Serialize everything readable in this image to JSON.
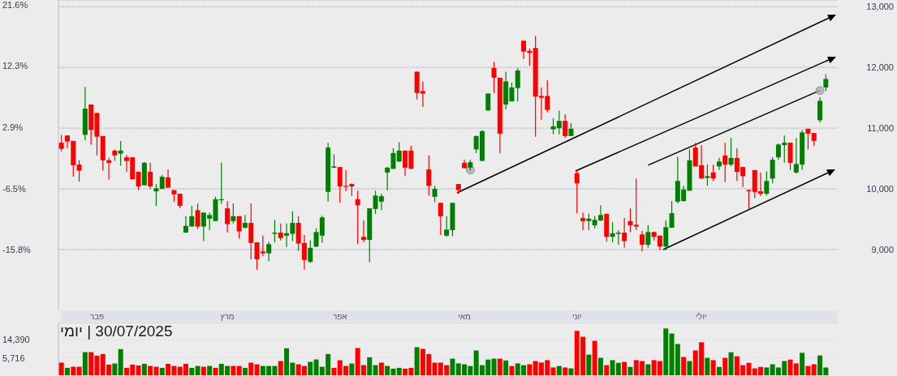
{
  "chart_data": [
    {
      "type": "candlestick",
      "categories": [
        null,
        null,
        null,
        null,
        null,
        null,
        "פבר",
        null,
        null,
        null,
        null,
        null,
        null,
        null,
        null,
        null,
        null,
        null,
        null,
        null,
        null,
        null,
        null,
        null,
        null,
        null,
        null,
        null,
        "מרץ",
        null,
        null,
        null,
        null,
        null,
        null,
        null,
        null,
        null,
        null,
        null,
        null,
        null,
        null,
        null,
        null,
        null,
        null,
        "אפר",
        null,
        null,
        null,
        null,
        null,
        null,
        null,
        null,
        null,
        null,
        null,
        null,
        null,
        null,
        null,
        null,
        null,
        null,
        null,
        null,
        "מאי",
        null,
        null,
        null,
        null,
        null,
        null,
        null,
        null,
        null,
        null,
        null,
        null,
        null,
        null,
        null,
        null,
        null,
        null,
        "יוני",
        null,
        null,
        null,
        null,
        null,
        null,
        null,
        null,
        null,
        null,
        null,
        null,
        null,
        null,
        null,
        null,
        null,
        null,
        null,
        null,
        "יולי",
        null,
        null,
        null,
        null,
        null,
        null,
        null,
        null,
        null,
        null,
        null,
        null,
        null,
        null,
        null,
        null,
        null,
        null,
        null,
        null,
        null
      ],
      "ohlc": [
        [
          10760,
          10890,
          10620,
          10660
        ],
        [
          10880,
          10880,
          10670,
          10780
        ],
        [
          10790,
          10790,
          10200,
          10390
        ],
        [
          10400,
          10470,
          10120,
          10300
        ],
        [
          10890,
          11680,
          10800,
          11320
        ],
        [
          11390,
          11390,
          10730,
          10970
        ],
        [
          11250,
          11250,
          10550,
          10860
        ],
        [
          10870,
          10870,
          10300,
          10470
        ],
        [
          10470,
          10510,
          10150,
          10430
        ],
        [
          10630,
          10650,
          10460,
          10550
        ],
        [
          10580,
          10790,
          10380,
          10630
        ],
        [
          10520,
          10560,
          10280,
          10460
        ],
        [
          10520,
          10520,
          10150,
          10160
        ],
        [
          10280,
          10290,
          9980,
          10040
        ],
        [
          10060,
          10440,
          10060,
          10430
        ],
        [
          10280,
          10430,
          10000,
          10040
        ],
        [
          9960,
          10080,
          9720,
          10010
        ],
        [
          10000,
          10230,
          10000,
          10200
        ],
        [
          10190,
          10320,
          10020,
          10020
        ],
        [
          9980,
          9980,
          9790,
          9910
        ],
        [
          9920,
          9920,
          9680,
          9720
        ],
        [
          9280,
          9550,
          9280,
          9390
        ],
        [
          9380,
          9720,
          9380,
          9550
        ],
        [
          9650,
          9760,
          9340,
          9380
        ],
        [
          9380,
          9610,
          9140,
          9610
        ],
        [
          9510,
          9610,
          9320,
          9570
        ],
        [
          9470,
          9870,
          9470,
          9830
        ],
        [
          9820,
          10430,
          9750,
          9830
        ],
        [
          9680,
          9800,
          9280,
          9420
        ],
        [
          9470,
          9760,
          9430,
          9550
        ],
        [
          9550,
          9550,
          9180,
          9300
        ],
        [
          9360,
          9570,
          9350,
          9440
        ],
        [
          9440,
          9760,
          8840,
          9110
        ],
        [
          9120,
          9120,
          8670,
          8840
        ],
        [
          8970,
          9230,
          8890,
          8940
        ],
        [
          8940,
          9130,
          8810,
          9090
        ],
        [
          9260,
          9490,
          9120,
          9280
        ],
        [
          9280,
          9430,
          9150,
          9190
        ],
        [
          9230,
          9430,
          9040,
          9270
        ],
        [
          9260,
          9630,
          9140,
          9440
        ],
        [
          9440,
          9550,
          8980,
          9100
        ],
        [
          9110,
          9240,
          8670,
          8830
        ],
        [
          8800,
          9150,
          8780,
          9030
        ],
        [
          9050,
          9350,
          9040,
          9290
        ],
        [
          9230,
          9560,
          9110,
          9530
        ],
        [
          9950,
          10760,
          9790,
          10680
        ],
        [
          10350,
          10570,
          10340,
          10370
        ],
        [
          10360,
          10360,
          9770,
          10040
        ],
        [
          10050,
          10310,
          9960,
          10040
        ],
        [
          10080,
          10090,
          9880,
          10040
        ],
        [
          9830,
          9970,
          9090,
          9730
        ],
        [
          9210,
          9480,
          9120,
          9160
        ],
        [
          9160,
          9680,
          8790,
          9680
        ],
        [
          9670,
          9970,
          9590,
          9890
        ],
        [
          9790,
          9920,
          9650,
          9880
        ],
        [
          10270,
          10360,
          9970,
          10350
        ],
        [
          10330,
          10670,
          10330,
          10590
        ],
        [
          10450,
          10770,
          10440,
          10630
        ],
        [
          10630,
          10630,
          10210,
          10350
        ],
        [
          10630,
          10710,
          10330,
          10330
        ],
        [
          11930,
          11930,
          11470,
          11580
        ],
        [
          11610,
          11770,
          11350,
          11570
        ],
        [
          10320,
          10550,
          9890,
          10050
        ],
        [
          9870,
          10050,
          9780,
          10000
        ],
        [
          9770,
          9770,
          9240,
          9550
        ],
        [
          9230,
          9550,
          9210,
          9330
        ],
        [
          9320,
          9770,
          9220,
          9770
        ],
        [
          10080,
          10080,
          9920,
          9980
        ],
        [
          10430,
          10480,
          10340,
          10340
        ],
        [
          10350,
          10480,
          10300,
          10440
        ],
        [
          10650,
          10880,
          10590,
          10870
        ],
        [
          10460,
          10970,
          10460,
          10950
        ],
        [
          11290,
          11570,
          11290,
          11570
        ],
        [
          11990,
          12090,
          11580,
          11830
        ],
        [
          11830,
          11830,
          10590,
          10910
        ],
        [
          11390,
          11930,
          11310,
          11770
        ],
        [
          11440,
          11750,
          11440,
          11670
        ],
        [
          11660,
          11990,
          11440,
          11950
        ],
        [
          12440,
          12440,
          12140,
          12260
        ],
        [
          12270,
          12310,
          12030,
          12240
        ],
        [
          12320,
          12520,
          10860,
          11520
        ],
        [
          11530,
          11670,
          11140,
          11500
        ],
        [
          11530,
          11790,
          11260,
          11300
        ],
        [
          10980,
          11160,
          10900,
          11030
        ],
        [
          11000,
          11290,
          10900,
          11120
        ],
        [
          11120,
          11230,
          10840,
          10870
        ],
        [
          10870,
          11080,
          10870,
          10990
        ],
        [
          10260,
          10310,
          9600,
          10090
        ],
        [
          9520,
          9610,
          9320,
          9470
        ],
        [
          9470,
          9590,
          9320,
          9510
        ],
        [
          9400,
          9550,
          9350,
          9490
        ],
        [
          9480,
          9730,
          9470,
          9570
        ],
        [
          9590,
          9590,
          9130,
          9210
        ],
        [
          9210,
          9450,
          9120,
          9270
        ],
        [
          9260,
          9320,
          9080,
          9280
        ],
        [
          9280,
          9520,
          9030,
          9140
        ],
        [
          9470,
          9680,
          9290,
          9400
        ],
        [
          9410,
          10170,
          9320,
          9380
        ],
        [
          9250,
          9310,
          8970,
          9080
        ],
        [
          9080,
          9400,
          9030,
          9290
        ],
        [
          9290,
          9290,
          9150,
          9210
        ],
        [
          9230,
          9230,
          8990,
          9050
        ],
        [
          9050,
          9480,
          8990,
          9370
        ],
        [
          9360,
          9800,
          9360,
          9600
        ],
        [
          9790,
          10530,
          9760,
          10130
        ],
        [
          9800,
          10050,
          9790,
          9990
        ],
        [
          9970,
          10650,
          9970,
          10470
        ],
        [
          10680,
          10760,
          10370,
          10370
        ],
        [
          10390,
          10720,
          10170,
          10170
        ],
        [
          10180,
          10400,
          10050,
          10210
        ],
        [
          10270,
          10400,
          10130,
          10170
        ],
        [
          10370,
          10510,
          10310,
          10450
        ],
        [
          10550,
          10760,
          10110,
          10400
        ],
        [
          10400,
          10840,
          10370,
          10510
        ],
        [
          10510,
          10670,
          10130,
          10280
        ],
        [
          10360,
          10360,
          10030,
          10210
        ],
        [
          9980,
          9990,
          9670,
          9960
        ],
        [
          10310,
          10310,
          9850,
          9950
        ],
        [
          9960,
          10270,
          9880,
          9920
        ],
        [
          9920,
          10290,
          9890,
          10130
        ],
        [
          10170,
          10520,
          10090,
          10480
        ],
        [
          10520,
          10750,
          10480,
          10730
        ],
        [
          10720,
          10880,
          10430,
          10760
        ],
        [
          10760,
          10760,
          10310,
          10430
        ],
        [
          10270,
          10840,
          10250,
          10410
        ],
        [
          10400,
          10970,
          10310,
          10930
        ],
        [
          10990,
          10990,
          10650,
          10910
        ],
        [
          10920,
          10920,
          10710,
          10790
        ],
        [
          11130,
          11510,
          11090,
          11450
        ],
        [
          11670,
          11890,
          11610,
          11810
        ]
      ],
      "colors": [
        "#ff0000",
        "#ff0000",
        "#ff0000",
        "#ff0000",
        "#008000",
        "#ff0000",
        "#ff0000",
        "#ff0000",
        "#ff0000",
        "#ff0000",
        "#008000",
        "#ff0000",
        "#ff0000",
        "#ff0000",
        "#008000",
        "#ff0000",
        "#008000",
        "#008000",
        "#ff0000",
        "#ff0000",
        "#ff0000",
        "#008000",
        "#008000",
        "#ff0000",
        "#008000",
        "#008000",
        "#008000",
        "#008000",
        "#ff0000",
        "#008000",
        "#ff0000",
        "#008000",
        "#ff0000",
        "#ff0000",
        "#ff0000",
        "#008000",
        "#008000",
        "#ff0000",
        "#008000",
        "#008000",
        "#ff0000",
        "#ff0000",
        "#008000",
        "#008000",
        "#008000",
        "#008000",
        "#008000",
        "#ff0000",
        "#ff0000",
        "#ff0000",
        "#ff0000",
        "#ff0000",
        "#008000",
        "#008000",
        "#008000",
        "#008000",
        "#008000",
        "#008000",
        "#ff0000",
        "#ff0000",
        "#ff0000",
        "#ff0000",
        "#ff0000",
        "#008000",
        "#ff0000",
        "#008000",
        "#008000",
        "#ff0000",
        "#ff0000",
        "#008000",
        "#008000",
        "#008000",
        "#008000",
        "#ff0000",
        "#ff0000",
        "#008000",
        "#008000",
        "#008000",
        "#ff0000",
        "#ff0000",
        "#ff0000",
        "#ff0000",
        "#ff0000",
        "#008000",
        "#008000",
        "#ff0000",
        "#008000",
        "#ff0000",
        "#ff0000",
        "#008000",
        "#008000",
        "#008000",
        "#ff0000",
        "#008000",
        "#008000",
        "#ff0000",
        "#ff0000",
        "#ff0000",
        "#ff0000",
        "#008000",
        "#ff0000",
        "#ff0000",
        "#008000",
        "#008000",
        "#008000",
        "#008000",
        "#008000",
        "#ff0000",
        "#ff0000",
        "#008000",
        "#ff0000",
        "#008000",
        "#ff0000",
        "#008000",
        "#ff0000",
        "#ff0000",
        "#ff0000",
        "#ff0000",
        "#ff0000",
        "#008000",
        "#008000",
        "#008000",
        "#008000",
        "#ff0000",
        "#008000",
        "#008000",
        "#ff0000",
        "#ff0000",
        "#008000",
        "#008000"
      ],
      "ylim": [
        8000,
        13110
      ],
      "yticks": [
        {
          "value": 9000,
          "label": "9,000"
        },
        {
          "value": 10000,
          "label": "10,000"
        },
        {
          "value": 11000,
          "label": "11,000"
        },
        {
          "value": 12000,
          "label": "12,000"
        },
        {
          "value": 13000,
          "label": "13,000"
        }
      ],
      "y2lim": [
        -25.1,
        22.3
      ],
      "y2ticks": [
        {
          "value": 21.6,
          "label": "21.6%"
        },
        {
          "value": 12.3,
          "label": "12.3%"
        },
        {
          "value": 2.9,
          "label": "2.9%"
        },
        {
          "value": -6.5,
          "label": "-6.5%"
        },
        {
          "value": -15.8,
          "label": "-15.8%"
        }
      ],
      "grid": "y",
      "series": [
        {
          "type": "line",
          "color": "#000000",
          "values": [
            null,
            null,
            null,
            null,
            null,
            null,
            null,
            null,
            null,
            null,
            null,
            null,
            null,
            null,
            null,
            null,
            null,
            null,
            null,
            null,
            null,
            null,
            null,
            null,
            null,
            null,
            null,
            null,
            null,
            null,
            null,
            null,
            null,
            null,
            null,
            null,
            null,
            null,
            null,
            null,
            null,
            null,
            null,
            null,
            null,
            null,
            null,
            null,
            null,
            null,
            null,
            null,
            null,
            null,
            null,
            null,
            null,
            null,
            null,
            null,
            null,
            null,
            null,
            null,
            null,
            null,
            null,
            null,
            null,
            null,
            null,
            null,
            null,
            null,
            null,
            null,
            null,
            null,
            null,
            null,
            null,
            null,
            null,
            null,
            null,
            null,
            null,
            null,
            null,
            null,
            null,
            null,
            null,
            null,
            null,
            null,
            null,
            null,
            null,
            10390,
            null,
            null,
            null,
            null,
            null,
            null,
            null,
            null,
            null,
            null,
            null,
            null,
            null,
            null,
            null,
            null,
            null,
            null,
            null,
            null,
            null,
            null,
            null,
            null,
            null,
            null,
            null,
            null,
            11620,
            null
          ]
        },
        {
          "type": "scatter",
          "color": "#a8a8a8",
          "marker": "circle",
          "values": [
            null,
            null,
            null,
            null,
            null,
            null,
            null,
            null,
            null,
            null,
            null,
            null,
            null,
            null,
            null,
            null,
            null,
            null,
            null,
            null,
            null,
            null,
            null,
            null,
            null,
            null,
            null,
            null,
            null,
            null,
            null,
            null,
            null,
            null,
            null,
            null,
            null,
            null,
            null,
            null,
            null,
            null,
            null,
            null,
            null,
            null,
            null,
            null,
            null,
            null,
            null,
            null,
            null,
            null,
            null,
            null,
            null,
            null,
            null,
            null,
            null,
            null,
            null,
            null,
            null,
            null,
            null,
            null,
            null,
            10310,
            null,
            null,
            null,
            null,
            null,
            null,
            null,
            null,
            null,
            null,
            null,
            null,
            null,
            null,
            null,
            null,
            null,
            null,
            null,
            null,
            null,
            null,
            null,
            null,
            null,
            null,
            null,
            null,
            null,
            null,
            null,
            null,
            null,
            null,
            null,
            null,
            null,
            null,
            null,
            null,
            null,
            null,
            null,
            null,
            null,
            null,
            null,
            null,
            null,
            null,
            null,
            null,
            null,
            null,
            null,
            null,
            null,
            null,
            11620,
            null
          ]
        }
      ]
    },
    {
      "type": "bar",
      "title": "30/07/2025 | יומי",
      "categories": [
        null,
        null,
        null,
        null,
        null,
        null,
        null,
        null,
        null,
        null,
        null,
        null,
        null,
        null,
        null,
        null,
        null,
        null,
        null,
        null,
        null,
        null,
        null,
        null,
        null,
        null,
        null,
        null,
        null,
        null,
        null,
        null,
        null,
        null,
        null,
        null,
        null,
        null,
        null,
        null,
        null,
        null,
        null,
        null,
        null,
        null,
        null,
        null,
        null,
        null,
        null,
        null,
        null,
        null,
        null,
        null,
        null,
        null,
        null,
        null,
        null,
        null,
        null,
        null,
        null,
        null,
        null,
        null,
        null,
        null,
        null,
        null,
        null,
        null,
        null,
        null,
        null,
        null,
        null,
        null,
        null,
        null,
        null,
        null,
        null,
        null,
        null,
        null,
        null,
        null,
        null,
        null,
        null,
        null,
        null,
        null,
        null,
        null,
        null,
        null,
        null,
        null,
        null,
        null,
        null,
        null,
        null,
        null,
        null,
        null,
        null,
        null,
        null,
        null,
        null,
        null,
        null,
        null,
        null,
        null,
        null,
        null,
        null,
        null,
        null,
        null,
        null,
        null,
        null,
        null
      ],
      "values": [
        4450,
        3400,
        3600,
        3600,
        7650,
        7650,
        6380,
        6940,
        4020,
        4250,
        8930,
        3400,
        4020,
        3850,
        4190,
        3750,
        3600,
        3400,
        4190,
        3750,
        3600,
        4190,
        3400,
        3750,
        3600,
        3750,
        3400,
        4190,
        3750,
        3750,
        3750,
        3400,
        4450,
        4080,
        3750,
        3750,
        3750,
        4830,
        9320,
        4450,
        4080,
        3750,
        4630,
        5250,
        3600,
        6940,
        3400,
        5030,
        3750,
        4250,
        9440,
        3910,
        5870,
        3910,
        4450,
        3750,
        3260,
        3400,
        3260,
        3400,
        9840,
        9060,
        6940,
        4450,
        4450,
        3900,
        5460,
        4280,
        4090,
        3740,
        8340,
        3900,
        5210,
        5460,
        5460,
        4980,
        3740,
        4280,
        3900,
        4090,
        4830,
        4480,
        5060,
        3470,
        3740,
        3470,
        3310,
        22900,
        16900,
        6730,
        13700,
        5690,
        3900,
        5060,
        4400,
        4610,
        3570,
        5060,
        4830,
        4090,
        5060,
        4830,
        25900,
        20000,
        11600,
        5960,
        4830,
        8340,
        12700,
        5690,
        5060,
        3570,
        5690,
        7600,
        6170,
        3900,
        4400,
        3310,
        3570,
        3470,
        4090,
        3470,
        4830,
        5210,
        4280,
        7390,
        3740,
        4090,
        6430,
        3470
      ],
      "colors": [
        "#ff0000",
        "#008000",
        "#ff0000",
        "#ff0000",
        "#008000",
        "#ff0000",
        "#ff0000",
        "#ff0000",
        "#ff0000",
        "#008000",
        "#008000",
        "#ff0000",
        "#ff0000",
        "#ff0000",
        "#008000",
        "#ff0000",
        "#ff0000",
        "#008000",
        "#ff0000",
        "#ff0000",
        "#ff0000",
        "#ff0000",
        "#008000",
        "#008000",
        "#ff0000",
        "#008000",
        "#ff0000",
        "#008000",
        "#008000",
        "#ff0000",
        "#ff0000",
        "#008000",
        "#ff0000",
        "#ff0000",
        "#008000",
        "#008000",
        "#008000",
        "#ff0000",
        "#008000",
        "#008000",
        "#ff0000",
        "#ff0000",
        "#008000",
        "#008000",
        "#008000",
        "#008000",
        "#ff0000",
        "#ff0000",
        "#ff0000",
        "#008000",
        "#ff0000",
        "#ff0000",
        "#008000",
        "#008000",
        "#ff0000",
        "#008000",
        "#008000",
        "#008000",
        "#ff0000",
        "#ff0000",
        "#008000",
        "#ff0000",
        "#ff0000",
        "#ff0000",
        "#ff0000",
        "#ff0000",
        "#008000",
        "#008000",
        "#008000",
        "#008000",
        "#008000",
        "#008000",
        "#008000",
        "#008000",
        "#ff0000",
        "#008000",
        "#ff0000",
        "#008000",
        "#008000",
        "#ff0000",
        "#ff0000",
        "#ff0000",
        "#ff0000",
        "#ff0000",
        "#008000",
        "#ff0000",
        "#008000",
        "#ff0000",
        "#ff0000",
        "#008000",
        "#ff0000",
        "#008000",
        "#ff0000",
        "#008000",
        "#008000",
        "#ff0000",
        "#008000",
        "#ff0000",
        "#ff0000",
        "#008000",
        "#ff0000",
        "#ff0000",
        "#008000",
        "#008000",
        "#008000",
        "#ff0000",
        "#008000",
        "#ff0000",
        "#ff0000",
        "#008000",
        "#ff0000",
        "#008000",
        "#ff0000",
        "#008000",
        "#ff0000",
        "#ff0000",
        "#ff0000",
        "#ff0000",
        "#ff0000",
        "#008000",
        "#008000",
        "#008000",
        "#008000",
        "#ff0000",
        "#ff0000",
        "#008000",
        "#ff0000",
        "#ff0000",
        "#008000",
        "#008000"
      ],
      "log": true,
      "ylim": [
        2330,
        35200
      ],
      "yticks": [
        {
          "value": 5716,
          "label": "5,716"
        },
        {
          "value": 14390,
          "label": "14,390"
        }
      ],
      "grid": "y"
    }
  ]
}
